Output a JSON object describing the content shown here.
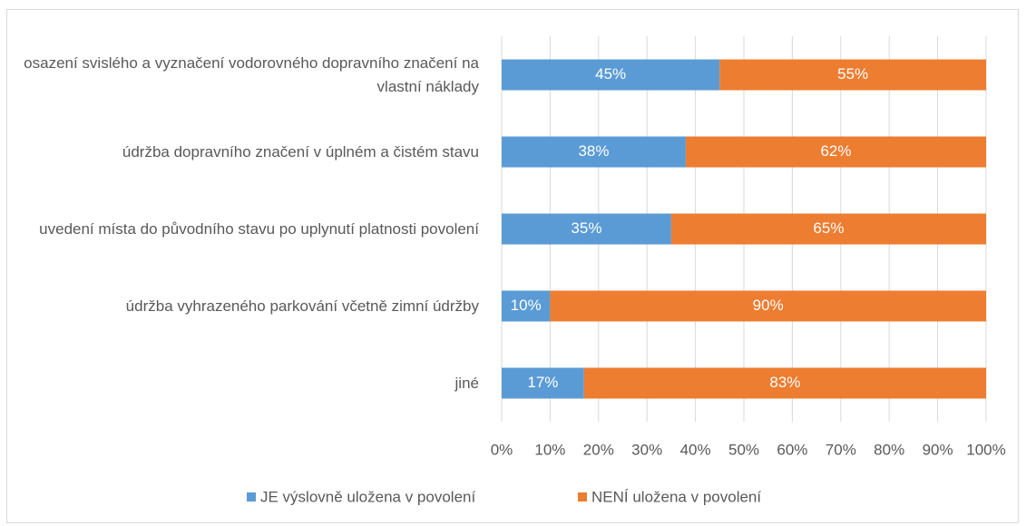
{
  "chart_data": {
    "type": "stacked_bar_horizontal",
    "categories": [
      "osazení svislého a vyznačení vodorovného dopravního značení na vlastní náklady",
      "údržba dopravního značení v úplném a čistém stavu",
      "uvedení místa do původního stavu po uplynutí platnosti povolení",
      "údržba vyhrazeného parkování včetně zimní údržby",
      "jiné"
    ],
    "series": [
      {
        "name": "JE výslovně uložena v povolení",
        "color": "#5b9bd5",
        "values": [
          45,
          38,
          35,
          10,
          17
        ],
        "value_labels": [
          "45%",
          "38%",
          "35%",
          "10%",
          "17%"
        ]
      },
      {
        "name": "NENÍ uložena v povolení",
        "color": "#ed7d31",
        "values": [
          55,
          62,
          65,
          90,
          83
        ],
        "value_labels": [
          "55%",
          "62%",
          "65%",
          "90%",
          "83%"
        ]
      }
    ],
    "xlim": [
      0,
      100
    ],
    "xticks": [
      {
        "value": 0,
        "label": "0%"
      },
      {
        "value": 10,
        "label": "10%"
      },
      {
        "value": 20,
        "label": "20%"
      },
      {
        "value": 30,
        "label": "30%"
      },
      {
        "value": 40,
        "label": "40%"
      },
      {
        "value": 50,
        "label": "50%"
      },
      {
        "value": 60,
        "label": "60%"
      },
      {
        "value": 70,
        "label": "70%"
      },
      {
        "value": 80,
        "label": "80%"
      },
      {
        "value": 90,
        "label": "90%"
      },
      {
        "value": 100,
        "label": "100%"
      }
    ],
    "grid": true,
    "legend": "bottom"
  }
}
